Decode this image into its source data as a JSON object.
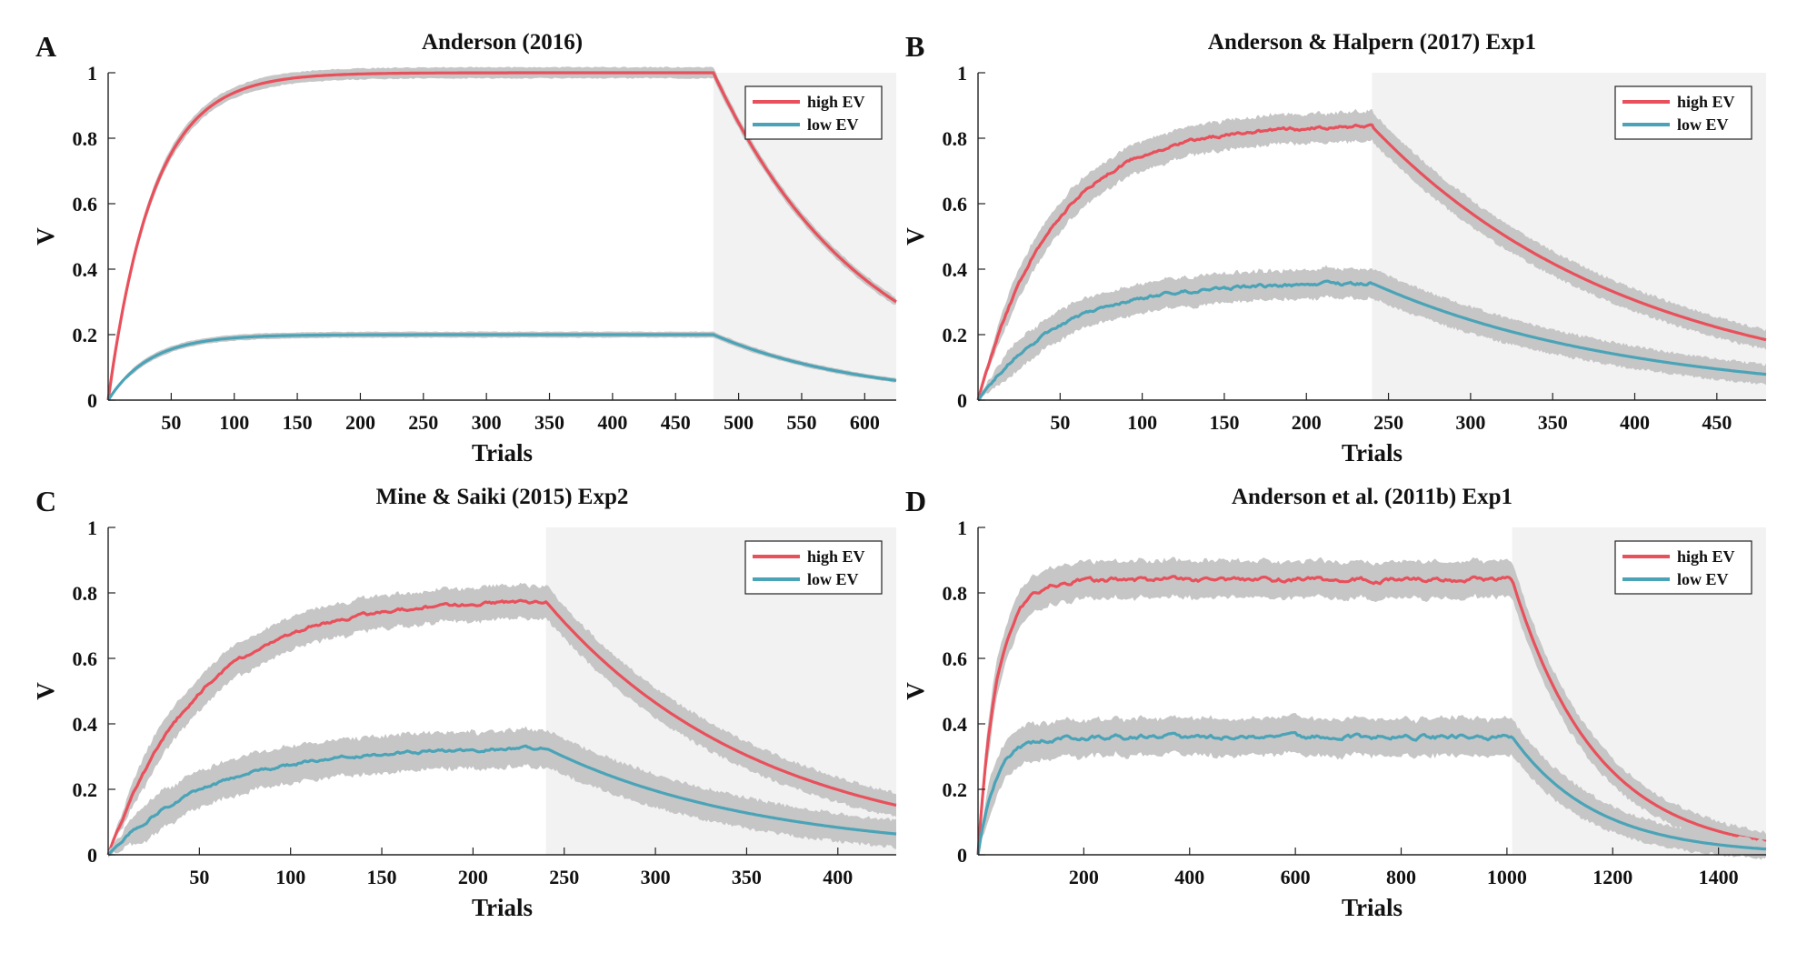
{
  "chart_data": [
    {
      "panel_label": "A",
      "type": "line",
      "title": "Anderson (2016)",
      "xlabel": "Trials",
      "ylabel": "V",
      "xlim": [
        0,
        625
      ],
      "ylim": [
        0,
        1
      ],
      "xticks": [
        50,
        100,
        150,
        200,
        250,
        300,
        350,
        400,
        450,
        500,
        550,
        600
      ],
      "yticks": [
        0,
        0.2,
        0.4,
        0.6,
        0.8,
        1
      ],
      "ytick_labels": [
        "0",
        "0.2",
        "0.4",
        "0.6",
        "0.8",
        "1"
      ],
      "extinction_start": 480,
      "legend": "top-right",
      "series": [
        {
          "name": "high EV",
          "color": "#e8505b",
          "plateau": 1.0,
          "learn_rate": 0.028,
          "extinction_rate": 0.0083,
          "band": 0.015,
          "noise": 0.0
        },
        {
          "name": "low EV",
          "color": "#4aa3b7",
          "plateau": 0.2,
          "learn_rate": 0.03,
          "extinction_rate": 0.0083,
          "band": 0.008,
          "noise": 0.0
        }
      ]
    },
    {
      "panel_label": "B",
      "type": "line",
      "title": "Anderson & Halpern (2017) Exp1",
      "xlabel": "Trials",
      "ylabel": "V",
      "xlim": [
        0,
        480
      ],
      "ylim": [
        0,
        1
      ],
      "xticks": [
        50,
        100,
        150,
        200,
        250,
        300,
        350,
        400,
        450
      ],
      "yticks": [
        0,
        0.2,
        0.4,
        0.6,
        0.8,
        1
      ],
      "ytick_labels": [
        "0",
        "0.2",
        "0.4",
        "0.6",
        "0.8",
        "1"
      ],
      "extinction_start": 240,
      "legend": "top-right",
      "series": [
        {
          "name": "high EV",
          "color": "#e8505b",
          "plateau": 0.84,
          "learn_rate": 0.022,
          "extinction_rate": 0.0063,
          "band": 0.04,
          "noise": 0.004
        },
        {
          "name": "low EV",
          "color": "#4aa3b7",
          "plateau": 0.36,
          "learn_rate": 0.02,
          "extinction_rate": 0.0063,
          "band": 0.04,
          "noise": 0.004
        }
      ]
    },
    {
      "panel_label": "C",
      "type": "line",
      "title": "Mine & Saiki (2015) Exp2",
      "xlabel": "Trials",
      "ylabel": "V",
      "xlim": [
        0,
        432
      ],
      "ylim": [
        0,
        1
      ],
      "xticks": [
        50,
        100,
        150,
        200,
        250,
        300,
        350,
        400
      ],
      "yticks": [
        0,
        0.2,
        0.4,
        0.6,
        0.8,
        1
      ],
      "ytick_labels": [
        "0",
        "0.2",
        "0.4",
        "0.6",
        "0.8",
        "1"
      ],
      "extinction_start": 240,
      "legend": "top-right",
      "series": [
        {
          "name": "high EV",
          "color": "#e8505b",
          "plateau": 0.78,
          "learn_rate": 0.02,
          "extinction_rate": 0.0085,
          "band": 0.045,
          "noise": 0.004
        },
        {
          "name": "low EV",
          "color": "#4aa3b7",
          "plateau": 0.33,
          "learn_rate": 0.018,
          "extinction_rate": 0.0085,
          "band": 0.05,
          "noise": 0.004
        }
      ]
    },
    {
      "panel_label": "D",
      "type": "line",
      "title": "Anderson et al. (2011b) Exp1",
      "xlabel": "Trials",
      "ylabel": "V",
      "xlim": [
        0,
        1490
      ],
      "ylim": [
        0,
        1
      ],
      "xticks": [
        200,
        400,
        600,
        800,
        1000,
        1200,
        1400
      ],
      "yticks": [
        0,
        0.2,
        0.4,
        0.6,
        0.8,
        1
      ],
      "ytick_labels": [
        "0",
        "0.2",
        "0.4",
        "0.6",
        "0.8",
        "1"
      ],
      "extinction_start": 1010,
      "legend": "top-right",
      "series": [
        {
          "name": "high EV",
          "color": "#e8505b",
          "plateau": 0.84,
          "learn_rate": 0.028,
          "extinction_rate": 0.0063,
          "band": 0.05,
          "noise": 0.006
        },
        {
          "name": "low EV",
          "color": "#4aa3b7",
          "plateau": 0.36,
          "learn_rate": 0.03,
          "extinction_rate": 0.0063,
          "band": 0.05,
          "noise": 0.006
        }
      ]
    }
  ]
}
